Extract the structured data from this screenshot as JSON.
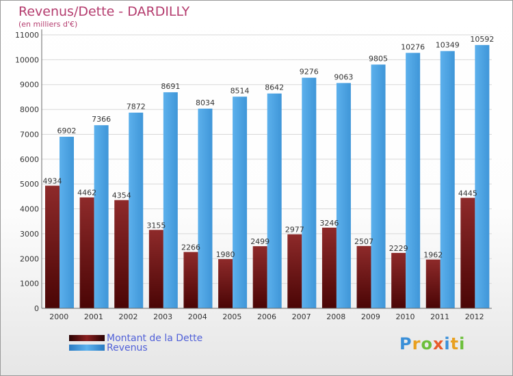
{
  "header": {
    "title": "Revenus/Dette - DARDILLY",
    "subtitle": "(en milliers d'€)"
  },
  "legend": {
    "items": [
      {
        "label": "Montant de la Dette",
        "color": "#6b0c0c"
      },
      {
        "label": "Revenus",
        "color": "#4aa4e6"
      }
    ]
  },
  "logo": {
    "text": "Proxiti",
    "letter_colors": [
      "#3a8fd8",
      "#e8a020",
      "#6cbf3a",
      "#e85a2a",
      "#3a8fd8",
      "#e8a020",
      "#6cbf3a"
    ]
  },
  "chart_data": {
    "type": "bar",
    "title": "Revenus/Dette - DARDILLY",
    "subtitle": "(en milliers d'€)",
    "categories": [
      "2000",
      "2001",
      "2002",
      "2003",
      "2004",
      "2005",
      "2006",
      "2007",
      "2008",
      "2009",
      "2010",
      "2011",
      "2012"
    ],
    "series": [
      {
        "name": "Montant de la Dette",
        "color": "#7a1a1a",
        "values": [
          4934,
          4462,
          4354,
          3155,
          2266,
          1980,
          2499,
          2977,
          3246,
          2507,
          2229,
          1962,
          4445
        ],
        "labels": [
          "4934",
          "4462",
          "4354",
          "3155",
          "2266",
          "1980",
          "2499",
          "2977",
          "3246",
          "2507",
          "2229",
          "1962",
          "4445"
        ]
      },
      {
        "name": "Revenus",
        "color": "#4aa4e6",
        "values": [
          6902,
          7366,
          7872,
          8691,
          8034,
          8514,
          8642,
          9276,
          9063,
          9805,
          10276,
          10349,
          10592
        ],
        "labels": [
          "6902",
          "7366",
          "7872",
          "8691",
          "8034",
          "8514",
          "8642",
          "9276",
          "9063",
          "9805",
          "10276",
          "10349",
          "10592"
        ]
      }
    ],
    "yticks": [
      0,
      1000,
      2000,
      3000,
      4000,
      5000,
      6000,
      7000,
      8000,
      9000,
      10000,
      11000
    ],
    "ylim": [
      0,
      11000
    ],
    "grid": true,
    "legend_position": "bottom-left"
  }
}
